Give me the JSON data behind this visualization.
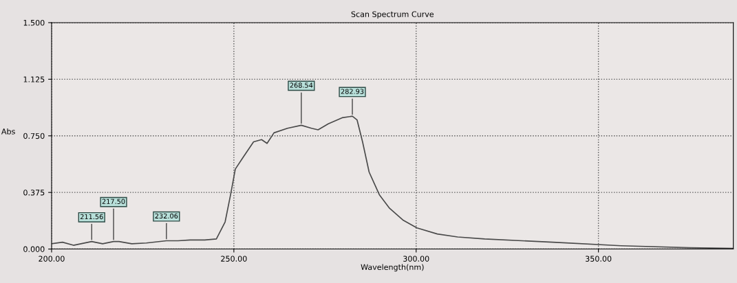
{
  "chart_data": {
    "type": "line",
    "title": "Scan Spectrum Curve",
    "xlabel": "Wavelength(nm)",
    "ylabel": "Abs",
    "xlim": [
      200,
      387
    ],
    "xticks": [
      {
        "value": 200,
        "label": "200.00"
      },
      {
        "value": 250,
        "label": "250.00"
      },
      {
        "value": 300,
        "label": "300.00"
      },
      {
        "value": 350,
        "label": "350.00"
      }
    ],
    "ylim": [
      0,
      1.5
    ],
    "yticks": [
      {
        "value": 0,
        "label": "0.000"
      },
      {
        "value": 0.375,
        "label": "0.375"
      },
      {
        "value": 0.75,
        "label": "0.750"
      },
      {
        "value": 1.125,
        "label": "1.125"
      },
      {
        "value": 1.5,
        "label": "1.500"
      }
    ],
    "grid": true,
    "line_style": "solid",
    "marker": "none",
    "series": [
      {
        "color": "#4a4a4a",
        "x": [
          200,
          203,
          206,
          211,
          214,
          217,
          218.5,
          222,
          226,
          231.5,
          234.7,
          238,
          242,
          245.2,
          247.6,
          249.1,
          250.4,
          252.6,
          255.4,
          257.6,
          259.1,
          261,
          264.7,
          268.5,
          271.3,
          273.1,
          275.9,
          279.7,
          282.5,
          283.8,
          285.3,
          287.1,
          289.9,
          292.7,
          296.5,
          300.2,
          305.8,
          311.4,
          318.8,
          337.5,
          356.2,
          374.8,
          387
        ],
        "values": [
          0.035,
          0.045,
          0.025,
          0.05,
          0.035,
          0.05,
          0.05,
          0.035,
          0.04,
          0.055,
          0.055,
          0.06,
          0.06,
          0.067,
          0.18,
          0.36,
          0.53,
          0.61,
          0.71,
          0.725,
          0.7,
          0.77,
          0.8,
          0.82,
          0.8,
          0.79,
          0.83,
          0.87,
          0.88,
          0.855,
          0.71,
          0.51,
          0.36,
          0.27,
          0.19,
          0.14,
          0.1,
          0.08,
          0.067,
          0.045,
          0.022,
          0.009,
          0.004
        ]
      }
    ],
    "annotations": [
      {
        "text": "211.56",
        "x": 211,
        "y": 0.05
      },
      {
        "text": "217.50",
        "x": 217,
        "y": 0.05
      },
      {
        "text": "232.06",
        "x": 231.5,
        "y": 0.055
      },
      {
        "text": "268.54",
        "x": 268.5,
        "y": 0.82
      },
      {
        "text": "282.93",
        "x": 282.5,
        "y": 0.88
      }
    ]
  }
}
